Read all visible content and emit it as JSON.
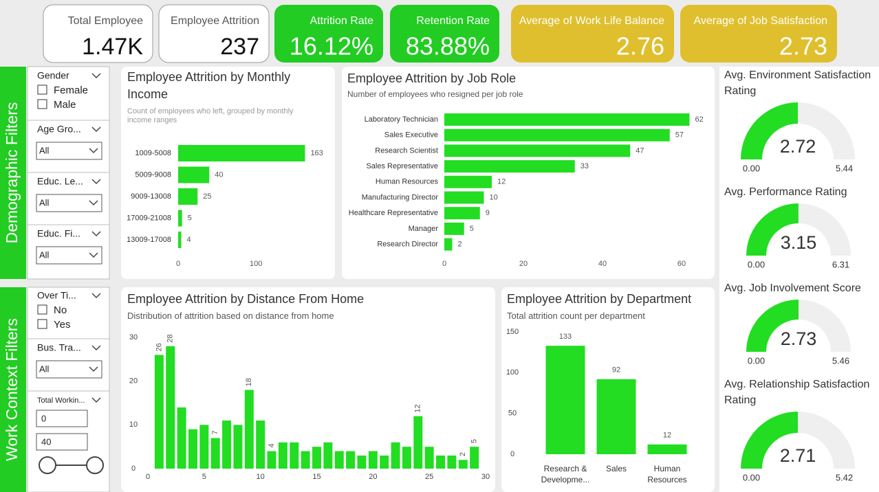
{
  "kpis": [
    {
      "label": "Total Employee",
      "value": "1.47K",
      "color": "#ffffff"
    },
    {
      "label": "Employee Attrition",
      "value": "237",
      "color": "#ffffff"
    },
    {
      "label": "Attrition Rate",
      "value": "16.12%",
      "color": "#22cc22"
    },
    {
      "label": "Retention Rate",
      "value": "83.88%",
      "color": "#22cc22"
    },
    {
      "label": "Average of Work Life Balance",
      "value": "2.76",
      "color": "#e0bf2e"
    },
    {
      "label": "Average of Job Satisfaction",
      "value": "2.73",
      "color": "#e0bf2e"
    }
  ],
  "filters": [
    {
      "title": "Demographic Filters",
      "slicers": [
        {
          "label": "Gender",
          "options": [
            "Female",
            "Male"
          ]
        },
        {
          "label": "Age Gro...",
          "selected": "All"
        },
        {
          "label": "Educ. Le...",
          "selected": "All"
        },
        {
          "label": "Educ. Fi...",
          "selected": "All"
        }
      ]
    },
    {
      "title": "Work Context Filters",
      "slicers": [
        {
          "label": "Over Ti...",
          "options": [
            "No",
            "Yes"
          ]
        },
        {
          "label": "Bus. Tra...",
          "selected": "All"
        },
        {
          "label": "Total Workin...",
          "range": [
            0,
            40
          ]
        }
      ]
    }
  ],
  "chart_data": [
    {
      "type": "bar",
      "orientation": "horizontal",
      "title": "Employee Attrition by Monthly Income",
      "subtitle": "Count of employees who left, grouped by monthly income ranges",
      "categories": [
        "1009-5008",
        "5009-9008",
        "9009-13008",
        "17009-21008",
        "13009-17008"
      ],
      "values": [
        163,
        40,
        25,
        5,
        4
      ],
      "xlim": [
        0,
        190
      ],
      "xticks": [
        0,
        100
      ],
      "color": "#22dd22"
    },
    {
      "type": "bar",
      "orientation": "horizontal",
      "title": "Employee Attrition by Job Role",
      "subtitle": "Number of employees who resigned per job role",
      "categories": [
        "Laboratory Technician",
        "Sales Executive",
        "Research Scientist",
        "Sales Representative",
        "Human Resources",
        "Manufacturing Director",
        "Healthcare Representative",
        "Manager",
        "Research Director"
      ],
      "values": [
        62,
        57,
        47,
        33,
        12,
        10,
        9,
        5,
        2
      ],
      "xlim": [
        0,
        66
      ],
      "xticks": [
        0,
        20,
        40,
        60
      ],
      "color": "#22dd22"
    },
    {
      "type": "bar",
      "title": "Employee Attrition by Distance From Home",
      "subtitle": "Distribution of attrition based on distance from home",
      "x": [
        1,
        2,
        3,
        4,
        5,
        6,
        7,
        8,
        9,
        10,
        11,
        12,
        13,
        14,
        15,
        16,
        17,
        18,
        19,
        20,
        21,
        22,
        23,
        24,
        25,
        26,
        27,
        28,
        29
      ],
      "values": [
        26,
        28,
        14,
        9,
        10,
        7,
        11,
        10,
        18,
        11,
        4,
        6,
        6,
        4,
        5,
        6,
        4,
        4,
        3,
        4,
        3,
        6,
        5,
        12,
        5,
        3,
        3,
        2,
        5
      ],
      "value_labels": [
        "26",
        "28",
        null,
        null,
        null,
        "7",
        null,
        null,
        "18",
        null,
        "4",
        null,
        null,
        null,
        null,
        null,
        null,
        null,
        null,
        null,
        null,
        null,
        null,
        "12",
        null,
        null,
        null,
        "2",
        "5"
      ],
      "xlim": [
        0,
        30
      ],
      "xticks": [
        0,
        5,
        10,
        15,
        20,
        25,
        30
      ],
      "ylim": [
        0,
        30
      ],
      "yticks": [
        0,
        10,
        20,
        30
      ],
      "color": "#22dd22"
    },
    {
      "type": "bar",
      "title": "Employee Attrition by Department",
      "subtitle": "Total attrition count per department",
      "categories": [
        "Research & Developme...",
        "Sales",
        "Human Resources"
      ],
      "values": [
        133,
        92,
        12
      ],
      "ylim": [
        0,
        150
      ],
      "yticks": [
        0,
        50,
        100,
        150
      ],
      "color": "#22dd22"
    },
    {
      "type": "gauge",
      "title": "Avg. Environment Satisfaction Rating",
      "value": 2.72,
      "min": {
        "value": 0,
        "label": "0.00"
      },
      "max": 5.44,
      "color": "#22dd22"
    },
    {
      "type": "gauge",
      "title": "Avg. Performance Rating",
      "value": 3.15,
      "min": {
        "value": 0,
        "label": "0.00"
      },
      "max": 6.31,
      "color": "#22dd22"
    },
    {
      "type": "gauge",
      "title": "Avg. Job Involvement Score",
      "value": 2.73,
      "min": {
        "value": 0,
        "label": "0.00"
      },
      "max": 5.46,
      "color": "#22dd22"
    },
    {
      "type": "gauge",
      "title": "Avg. Relationship Satisfaction Rating",
      "value": 2.71,
      "min": {
        "value": 0,
        "label": "0.00"
      },
      "max": 5.42,
      "color": "#22dd22"
    }
  ]
}
